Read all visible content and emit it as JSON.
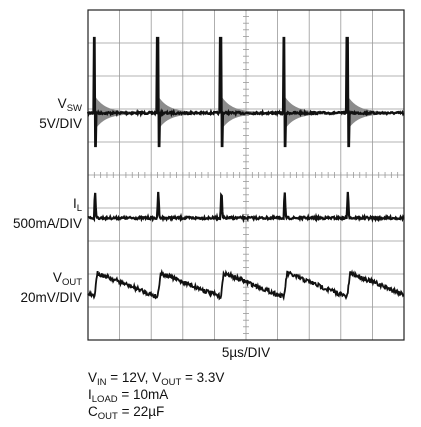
{
  "chart_data": {
    "type": "line",
    "title": "",
    "time_scale": "5µs/DIV",
    "grid": true,
    "x_divisions": 10,
    "y_divisions": 10,
    "switching_events_us": [
      1.0,
      11.0,
      21.0,
      31.0,
      41.0
    ],
    "series": [
      {
        "name": "VSW",
        "name_main": "V",
        "name_sub": "SW",
        "scale": "5V/DIV",
        "color": "#111111",
        "description_values": {
          "baseline_V": 3.3,
          "spike_peak_V": 12,
          "ring_decay_us": 5
        }
      },
      {
        "name": "IL",
        "name_main": "I",
        "name_sub": "L",
        "scale": "500mA/DIV",
        "color": "#111111",
        "description_values": {
          "baseline_mA": 0,
          "pulse_peak_mA": 400,
          "pulse_width_us": 0.4
        }
      },
      {
        "name": "VOUT",
        "name_main": "V",
        "name_sub": "OUT",
        "scale": "20mV/DIV",
        "color": "#111111",
        "description_values": {
          "ripple_pp_mV": 22
        }
      }
    ]
  },
  "labels": {
    "vsw_main": "V",
    "vsw_sub": "SW",
    "vsw_scale": "5V/DIV",
    "il_main": "I",
    "il_sub": "L",
    "il_scale": "500mA/DIV",
    "vout_main": "V",
    "vout_sub": "OUT",
    "vout_scale": "20mV/DIV",
    "time_scale": "5µs/DIV"
  },
  "conditions": {
    "vin_main": "V",
    "vin_sub": "IN",
    "vin_rest": " = 12V, ",
    "vout_main": "V",
    "vout_sub": "OUT",
    "vout_rest": " = 3.3V",
    "iload_main": "I",
    "iload_sub": "LOAD",
    "iload_rest": " = 10mA",
    "cout_main": "C",
    "cout_sub": "OUT",
    "cout_rest": " = 22µF"
  },
  "colors": {
    "grid": "#9a9a9a",
    "trace": "#111111",
    "ring": "#8c8c8c",
    "frame": "#222222"
  }
}
